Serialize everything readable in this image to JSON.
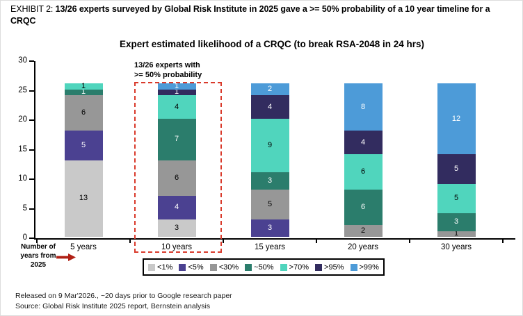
{
  "header": {
    "exhibit_label": "EXHIBIT 2: ",
    "title_bold": "13/26 experts surveyed by Global Risk Institute in 2025 gave a >= 50% probability of a 10 year timeline for a CRQC"
  },
  "chart_data": {
    "type": "bar",
    "stacked": true,
    "title": "Expert estimated likelihood of a CRQC (to break RSA-2048 in 24 hrs)",
    "categories": [
      "5 years",
      "10 years",
      "15 years",
      "20 years",
      "30 years"
    ],
    "series": [
      {
        "name": "<1%",
        "color": "#c9c9c9",
        "label_color": "#000000",
        "values": [
          13,
          3,
          0,
          0,
          0
        ]
      },
      {
        "name": "<5%",
        "color": "#4b4191",
        "label_color": "#ffffff",
        "values": [
          5,
          4,
          3,
          0,
          0
        ]
      },
      {
        "name": "<30%",
        "color": "#979797",
        "label_color": "#000000",
        "values": [
          6,
          6,
          5,
          2,
          1
        ]
      },
      {
        "name": "~50%",
        "color": "#2b7d6c",
        "label_color": "#ffffff",
        "values": [
          1,
          7,
          3,
          6,
          3
        ]
      },
      {
        "name": ">70%",
        "color": "#50d5bd",
        "label_color": "#000000",
        "values": [
          1,
          4,
          9,
          6,
          5
        ]
      },
      {
        "name": ">95%",
        "color": "#322c5f",
        "label_color": "#ffffff",
        "values": [
          0,
          1,
          4,
          4,
          5
        ]
      },
      {
        "name": ">99%",
        "color": "#4d9bd8",
        "label_color": "#ffffff",
        "values": [
          0,
          1,
          2,
          8,
          12
        ]
      }
    ],
    "total_per_category": 26,
    "ylim": [
      0,
      30
    ],
    "yticks": [
      0,
      5,
      10,
      15,
      20,
      25,
      30
    ],
    "grid": false,
    "legend_position": "bottom"
  },
  "annotation": {
    "line1": "13/26 experts with",
    "line2": ">= 50% probability",
    "highlight_category": "10 years"
  },
  "x_axis_note": {
    "line1": "Number of",
    "line2": "years from",
    "line3": "2025"
  },
  "footer": {
    "line1": "Released on 9 Mar'2026., ~20 days prior to Google research paper",
    "line2": "Source: Global Risk Institute 2025 report, Bernstein analysis"
  },
  "colors": {
    "highlight_box": "#d93a2b",
    "arrow": "#b02015",
    "axis": "#000000"
  }
}
